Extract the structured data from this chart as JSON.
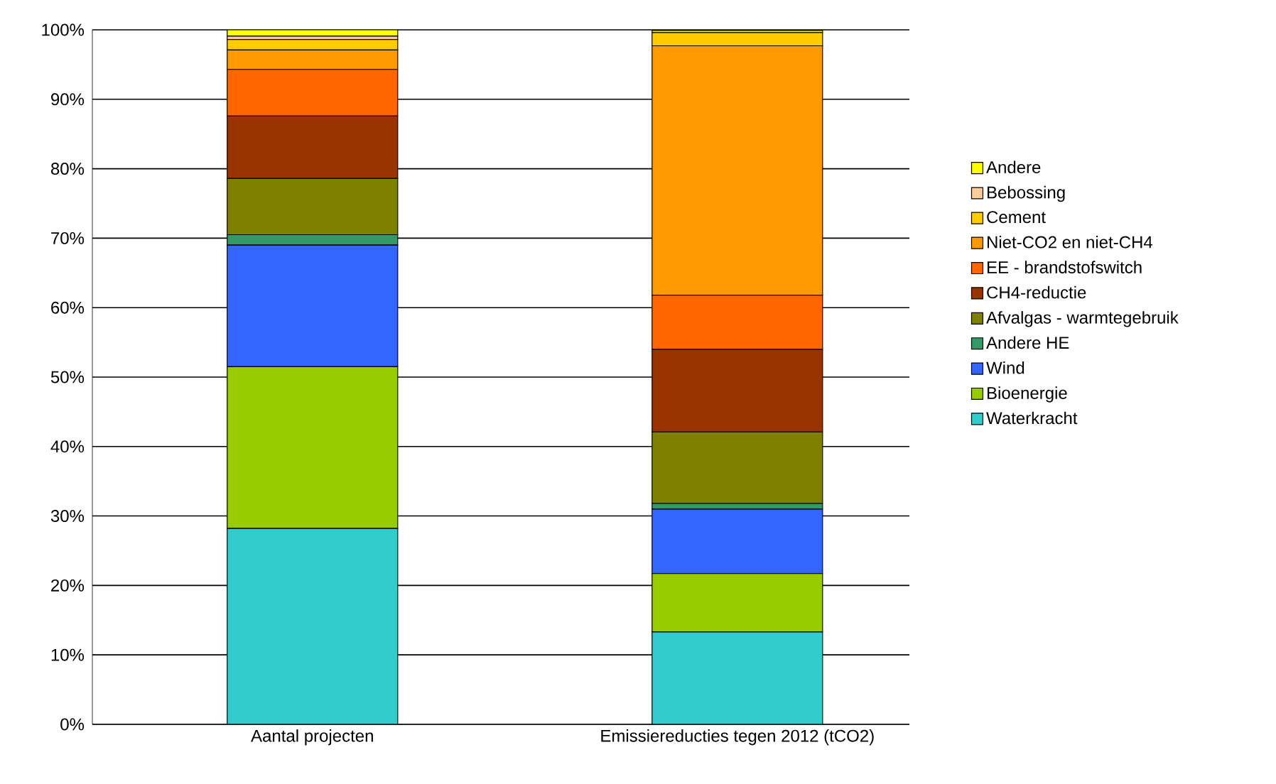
{
  "chart_data": {
    "type": "bar",
    "stacked": true,
    "categories": [
      "Aantal projecten",
      "Emissiereducties tegen 2012 (tCO2)"
    ],
    "series": [
      {
        "name": "Waterkracht",
        "color": "#33cccc",
        "values": [
          28.2,
          13.3
        ]
      },
      {
        "name": "Bioenergie",
        "color": "#99cc00",
        "values": [
          23.3,
          8.4
        ]
      },
      {
        "name": "Wind",
        "color": "#3366ff",
        "values": [
          17.5,
          9.3
        ]
      },
      {
        "name": "Andere HE",
        "color": "#339966",
        "values": [
          1.5,
          0.8
        ]
      },
      {
        "name": "Afvalgas - warmtegebruik",
        "color": "#808000",
        "values": [
          8.1,
          10.3
        ]
      },
      {
        "name": "CH4-reductie",
        "color": "#993300",
        "values": [
          9.0,
          11.9
        ]
      },
      {
        "name": "EE - brandstofswitch",
        "color": "#ff6600",
        "values": [
          6.7,
          7.8
        ]
      },
      {
        "name": "Niet-CO2 en niet-CH4",
        "color": "#ff9900",
        "values": [
          2.8,
          35.9
        ]
      },
      {
        "name": "Cement",
        "color": "#ffcc00",
        "values": [
          1.5,
          1.9
        ]
      },
      {
        "name": "Bebossing",
        "color": "#ffcc99",
        "values": [
          0.5,
          null
        ]
      },
      {
        "name": "Andere",
        "color": "#ffff00",
        "values": [
          0.9,
          0.3
        ]
      }
    ],
    "ylim": [
      0,
      100
    ],
    "yticks": [
      {
        "value": 0,
        "label": "0%"
      },
      {
        "value": 10,
        "label": "10%"
      },
      {
        "value": 20,
        "label": "20%"
      },
      {
        "value": 30,
        "label": "30%"
      },
      {
        "value": 40,
        "label": "40%"
      },
      {
        "value": 50,
        "label": "50%"
      },
      {
        "value": 60,
        "label": "60%"
      },
      {
        "value": 70,
        "label": "70%"
      },
      {
        "value": 80,
        "label": "80%"
      },
      {
        "value": 90,
        "label": "90%"
      },
      {
        "value": 100,
        "label": "100%"
      }
    ],
    "grid": "y",
    "legend": "right"
  }
}
